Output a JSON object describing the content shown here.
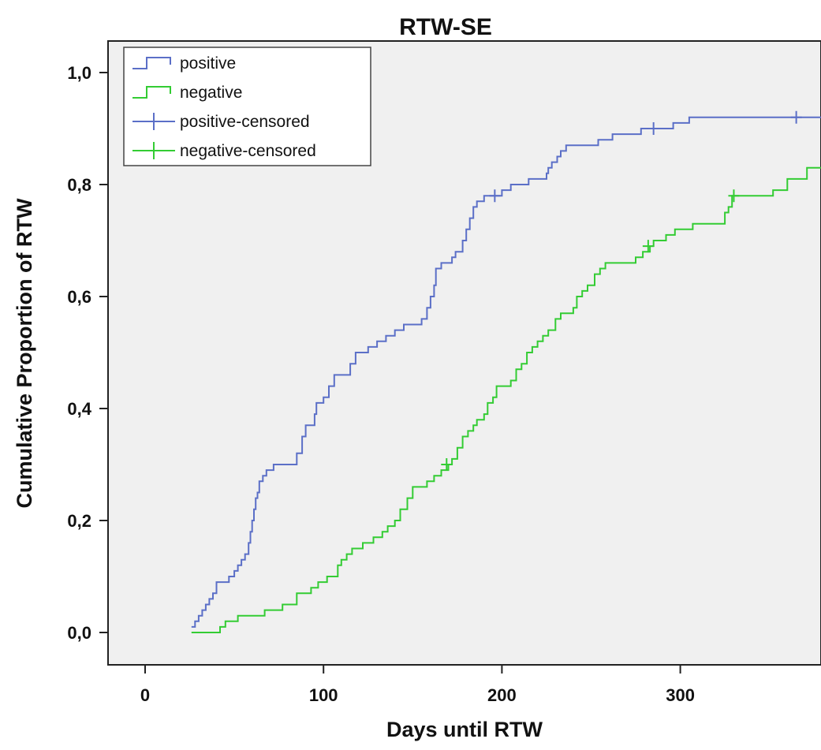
{
  "chart_data": {
    "type": "line",
    "step": true,
    "title": "RTW-SE",
    "xlabel": "Days until RTW",
    "ylabel": "Cumulative Proportion of RTW",
    "xlim": [
      -20,
      380
    ],
    "ylim": [
      -0.06,
      1.06
    ],
    "x_ticks": [
      0,
      100,
      200,
      300
    ],
    "x_tick_labels": [
      "0",
      "100",
      "200",
      "300"
    ],
    "y_ticks": [
      0.0,
      0.2,
      0.4,
      0.6,
      0.8,
      1.0
    ],
    "y_tick_labels": [
      "0,0",
      "0,2",
      "0,4",
      "0,6",
      "0,8",
      "1,0"
    ],
    "legend": {
      "position": "top-left",
      "entries": [
        {
          "label": "positive",
          "style": "step",
          "color": "#5b6fc7"
        },
        {
          "label": "negative",
          "style": "step",
          "color": "#33cc33"
        },
        {
          "label": "positive-censored",
          "style": "cross",
          "color": "#5b6fc7"
        },
        {
          "label": "negative-censored",
          "style": "cross",
          "color": "#33cc33"
        }
      ]
    },
    "series": [
      {
        "name": "positive",
        "color": "#5b6fc7",
        "points": [
          [
            26,
            0.01
          ],
          [
            28,
            0.02
          ],
          [
            30,
            0.03
          ],
          [
            32,
            0.04
          ],
          [
            34,
            0.05
          ],
          [
            36,
            0.06
          ],
          [
            38,
            0.07
          ],
          [
            40,
            0.09
          ],
          [
            43,
            0.09
          ],
          [
            47,
            0.1
          ],
          [
            50,
            0.11
          ],
          [
            52,
            0.12
          ],
          [
            54,
            0.13
          ],
          [
            56,
            0.14
          ],
          [
            58,
            0.16
          ],
          [
            59,
            0.18
          ],
          [
            60,
            0.2
          ],
          [
            61,
            0.22
          ],
          [
            62,
            0.24
          ],
          [
            63,
            0.25
          ],
          [
            64,
            0.27
          ],
          [
            66,
            0.28
          ],
          [
            68,
            0.29
          ],
          [
            72,
            0.3
          ],
          [
            85,
            0.32
          ],
          [
            88,
            0.35
          ],
          [
            90,
            0.37
          ],
          [
            95,
            0.39
          ],
          [
            96,
            0.41
          ],
          [
            100,
            0.42
          ],
          [
            103,
            0.44
          ],
          [
            106,
            0.46
          ],
          [
            115,
            0.48
          ],
          [
            118,
            0.5
          ],
          [
            125,
            0.51
          ],
          [
            130,
            0.52
          ],
          [
            135,
            0.53
          ],
          [
            140,
            0.54
          ],
          [
            145,
            0.55
          ],
          [
            155,
            0.56
          ],
          [
            158,
            0.58
          ],
          [
            160,
            0.6
          ],
          [
            162,
            0.62
          ],
          [
            163,
            0.65
          ],
          [
            166,
            0.66
          ],
          [
            172,
            0.67
          ],
          [
            174,
            0.68
          ],
          [
            178,
            0.7
          ],
          [
            180,
            0.72
          ],
          [
            182,
            0.74
          ],
          [
            184,
            0.76
          ],
          [
            186,
            0.77
          ],
          [
            190,
            0.78
          ],
          [
            200,
            0.79
          ],
          [
            205,
            0.8
          ],
          [
            215,
            0.81
          ],
          [
            225,
            0.82
          ],
          [
            226,
            0.83
          ],
          [
            228,
            0.84
          ],
          [
            231,
            0.85
          ],
          [
            233,
            0.86
          ],
          [
            236,
            0.87
          ],
          [
            254,
            0.88
          ],
          [
            262,
            0.89
          ],
          [
            278,
            0.9
          ],
          [
            296,
            0.91
          ],
          [
            305,
            0.92
          ],
          [
            380,
            0.92
          ]
        ],
        "censored": [
          [
            196,
            0.78
          ],
          [
            285,
            0.9
          ],
          [
            365,
            0.92
          ]
        ]
      },
      {
        "name": "negative",
        "color": "#33cc33",
        "points": [
          [
            26,
            0.0
          ],
          [
            42,
            0.01
          ],
          [
            45,
            0.02
          ],
          [
            52,
            0.03
          ],
          [
            67,
            0.04
          ],
          [
            77,
            0.05
          ],
          [
            85,
            0.07
          ],
          [
            93,
            0.08
          ],
          [
            97,
            0.09
          ],
          [
            102,
            0.1
          ],
          [
            108,
            0.12
          ],
          [
            110,
            0.13
          ],
          [
            113,
            0.14
          ],
          [
            116,
            0.15
          ],
          [
            122,
            0.16
          ],
          [
            128,
            0.17
          ],
          [
            133,
            0.18
          ],
          [
            136,
            0.19
          ],
          [
            140,
            0.2
          ],
          [
            143,
            0.22
          ],
          [
            147,
            0.24
          ],
          [
            150,
            0.26
          ],
          [
            158,
            0.27
          ],
          [
            162,
            0.28
          ],
          [
            166,
            0.29
          ],
          [
            170,
            0.3
          ],
          [
            172,
            0.31
          ],
          [
            175,
            0.33
          ],
          [
            178,
            0.35
          ],
          [
            181,
            0.36
          ],
          [
            184,
            0.37
          ],
          [
            186,
            0.38
          ],
          [
            190,
            0.39
          ],
          [
            192,
            0.41
          ],
          [
            195,
            0.42
          ],
          [
            197,
            0.44
          ],
          [
            205,
            0.45
          ],
          [
            208,
            0.47
          ],
          [
            211,
            0.48
          ],
          [
            214,
            0.5
          ],
          [
            217,
            0.51
          ],
          [
            220,
            0.52
          ],
          [
            223,
            0.53
          ],
          [
            226,
            0.54
          ],
          [
            230,
            0.56
          ],
          [
            233,
            0.57
          ],
          [
            240,
            0.58
          ],
          [
            242,
            0.6
          ],
          [
            245,
            0.61
          ],
          [
            248,
            0.62
          ],
          [
            252,
            0.64
          ],
          [
            255,
            0.65
          ],
          [
            258,
            0.66
          ],
          [
            275,
            0.67
          ],
          [
            279,
            0.68
          ],
          [
            283,
            0.69
          ],
          [
            285,
            0.7
          ],
          [
            292,
            0.71
          ],
          [
            297,
            0.72
          ],
          [
            307,
            0.73
          ],
          [
            325,
            0.75
          ],
          [
            327,
            0.76
          ],
          [
            329,
            0.78
          ],
          [
            352,
            0.79
          ],
          [
            360,
            0.81
          ],
          [
            371,
            0.83
          ],
          [
            380,
            0.83
          ]
        ],
        "censored": [
          [
            169,
            0.3
          ],
          [
            282,
            0.69
          ],
          [
            330,
            0.78
          ]
        ]
      }
    ]
  }
}
